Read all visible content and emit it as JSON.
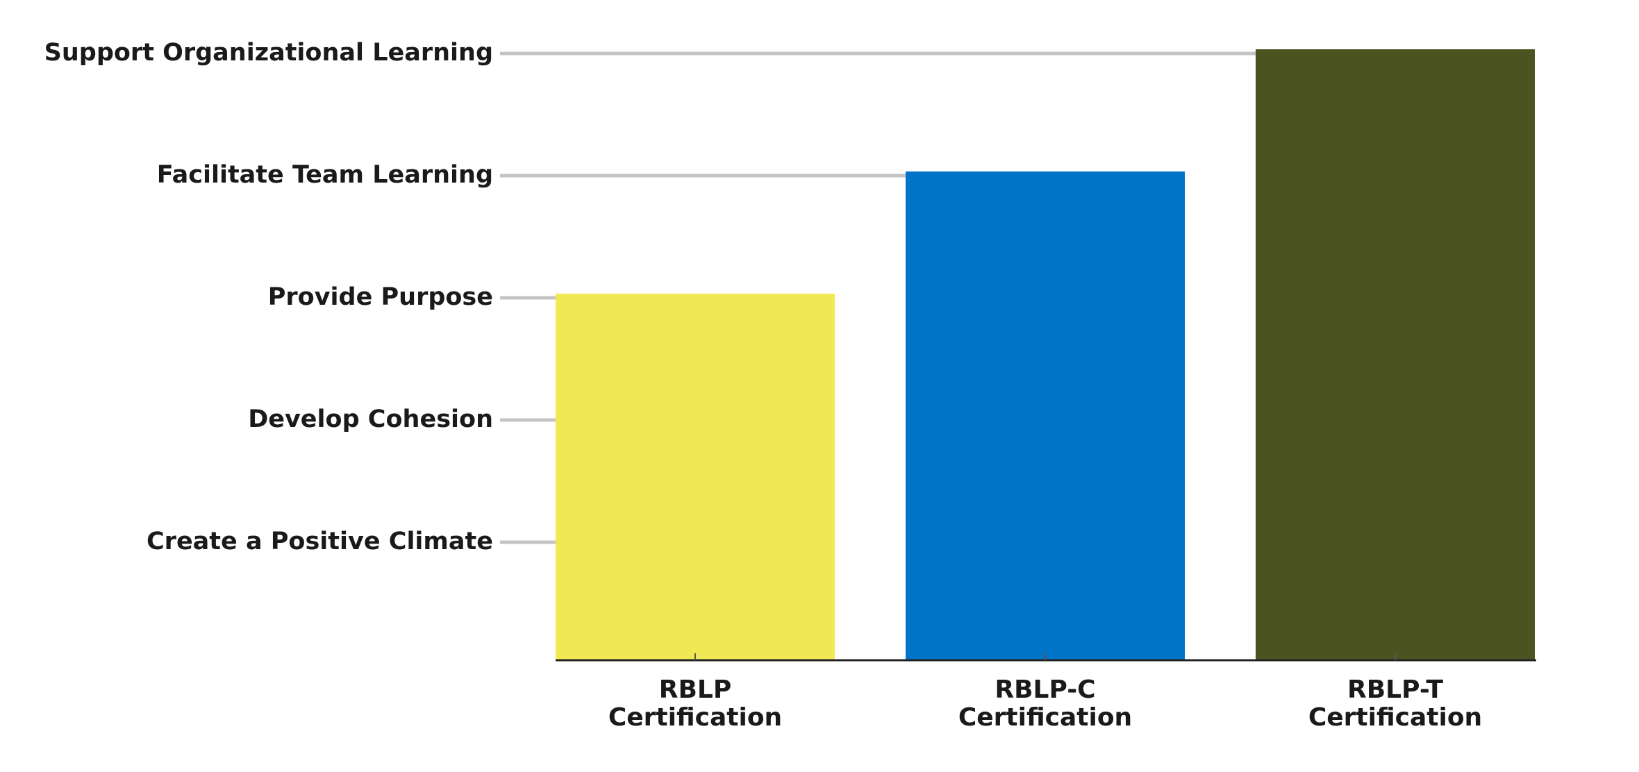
{
  "chart_data": {
    "type": "bar",
    "categories": [
      [
        "RBLP",
        "Certification"
      ],
      [
        "RBLP-C",
        "Certification"
      ],
      [
        "RBLP-T",
        "Certification"
      ]
    ],
    "values": [
      3,
      4,
      5
    ],
    "colors": [
      "#f0e954",
      "#0074c8",
      "#4b5321"
    ],
    "y_levels": [
      "Create a Positive Climate",
      "Develop Cohesion",
      "Provide Purpose",
      "Facilitate Team Learning",
      "Support Organizational Learning"
    ],
    "ylim": [
      0,
      5
    ],
    "grid": false,
    "legend": "none"
  }
}
